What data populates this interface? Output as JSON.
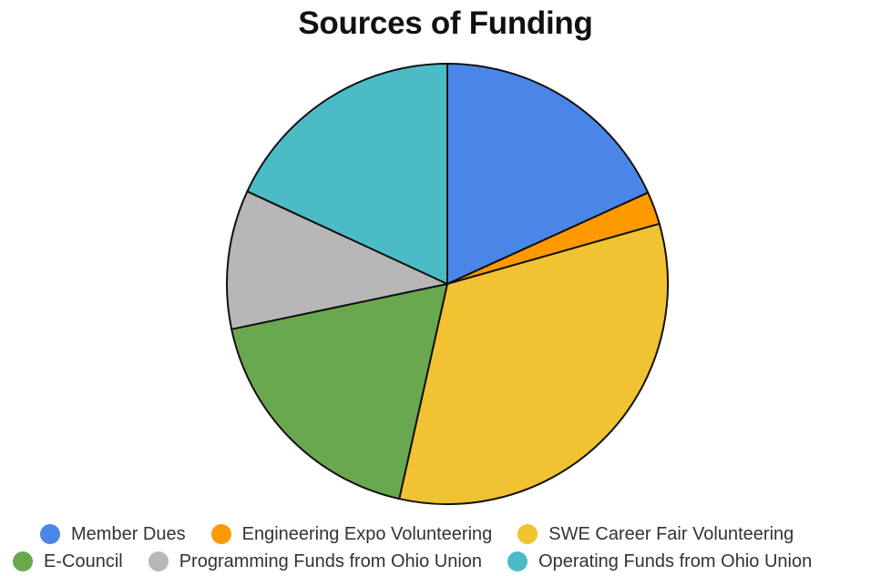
{
  "chart_data": {
    "type": "pie",
    "title": "Sources of Funding",
    "start_angle_deg": 0,
    "direction": "clockwise",
    "slices": [
      {
        "label": "Member Dues",
        "value": 18.2,
        "color": "#4a86e8"
      },
      {
        "label": "Engineering Expo Volunteering",
        "value": 2.4,
        "color": "#ff9900"
      },
      {
        "label": "SWE Career Fair Volunteering",
        "value": 32.9,
        "color": "#f1c232"
      },
      {
        "label": "E-Council",
        "value": 18.2,
        "color": "#6aa84f"
      },
      {
        "label": "Programming Funds from Ohio Union",
        "value": 10.2,
        "color": "#b7b7b7"
      },
      {
        "label": "Operating Funds from Ohio Union",
        "value": 18.1,
        "color": "#4bbcc6"
      }
    ],
    "legend_position": "bottom"
  }
}
